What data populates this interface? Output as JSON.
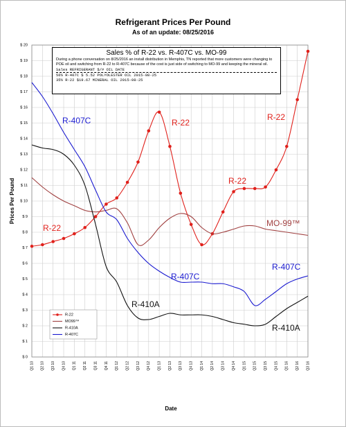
{
  "chart_data": {
    "type": "line",
    "title": "Refrigerant Prices Per Pound",
    "subtitle": "As of an update:  08/25/2016",
    "x_label": "Date",
    "y_label": "Prices Per Pound",
    "categories": [
      "Q1 10",
      "Q2 10",
      "Q3 10",
      "Q4 10",
      "Q1 11",
      "Q2 11",
      "Q3 11",
      "Q4 11",
      "Q1 12",
      "Q2 12",
      "Q3 12",
      "Q4 12",
      "Q1 13",
      "Q2 13",
      "Q3 13",
      "Q4 13",
      "Q1 14",
      "Q2 14",
      "Q3 14",
      "Q4 14",
      "Q1 15",
      "Q2 15",
      "Q3 15",
      "Q4 15",
      "Q1 16",
      "Q2 16",
      "Q3 16"
    ],
    "series": [
      {
        "name": "R-22",
        "color": "#e0201b",
        "markers": true,
        "values": [
          7.1,
          7.2,
          7.4,
          7.6,
          7.9,
          8.3,
          9.0,
          9.8,
          10.2,
          11.2,
          12.5,
          14.5,
          15.7,
          13.5,
          10.5,
          8.5,
          7.2,
          7.9,
          9.3,
          10.6,
          10.8,
          10.8,
          10.9,
          12.0,
          13.5,
          16.5,
          19.6
        ]
      },
      {
        "name": "MO99™",
        "color": "#a04040",
        "markers": false,
        "values": [
          11.5,
          10.9,
          10.4,
          10.0,
          9.7,
          9.4,
          9.3,
          9.4,
          9.5,
          8.6,
          7.2,
          7.5,
          8.3,
          8.9,
          9.2,
          9.0,
          8.3,
          7.9,
          8.0,
          8.2,
          8.4,
          8.4,
          8.2,
          8.1,
          8.0,
          7.9,
          7.8
        ]
      },
      {
        "name": "R-410A",
        "color": "#111111",
        "markers": false,
        "values": [
          13.6,
          13.4,
          13.3,
          13.0,
          12.3,
          11.0,
          8.5,
          5.8,
          4.8,
          3.3,
          2.5,
          2.4,
          2.6,
          2.8,
          2.7,
          2.7,
          2.7,
          2.6,
          2.4,
          2.2,
          2.1,
          2.0,
          2.1,
          2.6,
          3.1,
          3.5,
          3.9
        ]
      },
      {
        "name": "R-407C",
        "color": "#1a1ad0",
        "markers": false,
        "values": [
          17.6,
          16.7,
          15.6,
          14.4,
          13.3,
          12.2,
          10.7,
          9.3,
          8.8,
          7.6,
          6.7,
          6.0,
          5.5,
          5.1,
          4.8,
          4.8,
          4.8,
          4.7,
          4.7,
          4.5,
          4.2,
          3.3,
          3.7,
          4.2,
          4.7,
          5.0,
          5.2
        ]
      }
    ],
    "ylim": [
      0,
      20
    ],
    "yticks": [
      {
        "value": 0,
        "label": "$ 0"
      },
      {
        "value": 1,
        "label": "$ 1"
      },
      {
        "value": 2,
        "label": "$ 2"
      },
      {
        "value": 3,
        "label": "$ 3"
      },
      {
        "value": 4,
        "label": "$ 4"
      },
      {
        "value": 5,
        "label": "$ 5"
      },
      {
        "value": 6,
        "label": "$ 6"
      },
      {
        "value": 7,
        "label": "$ 7"
      },
      {
        "value": 8,
        "label": "$ 8"
      },
      {
        "value": 9,
        "label": "$ 9"
      },
      {
        "value": 10,
        "label": "$ 10"
      },
      {
        "value": 11,
        "label": "$ 11"
      },
      {
        "value": 12,
        "label": "$ 12"
      },
      {
        "value": 13,
        "label": "$ 13"
      },
      {
        "value": 14,
        "label": "$ 14"
      },
      {
        "value": 15,
        "label": "$ 15"
      },
      {
        "value": 16,
        "label": "$ 16"
      },
      {
        "value": 17,
        "label": "$ 17"
      },
      {
        "value": 18,
        "label": "$ 18"
      },
      {
        "value": 19,
        "label": "$ 19"
      },
      {
        "value": 20,
        "label": "$ 20"
      }
    ],
    "grid": true,
    "legend": "lower left",
    "annotations": [
      {
        "text": "R-407C",
        "color": "#1a1ad0"
      },
      {
        "text": "R-22",
        "color": "#e0201b"
      },
      {
        "text": "R-22",
        "color": "#e0201b"
      },
      {
        "text": "R-22",
        "color": "#e0201b"
      },
      {
        "text": "R-22",
        "color": "#e0201b"
      },
      {
        "text": "MO-99™",
        "color": "#a04040"
      },
      {
        "text": "R-407C",
        "color": "#1a1ad0"
      },
      {
        "text": "R-407C",
        "color": "#1a1ad0"
      },
      {
        "text": "R-410A",
        "color": "#111111"
      },
      {
        "text": "R-410A",
        "color": "#111111"
      }
    ],
    "note": {
      "title": "Sales % of R-22 vs. R-407C vs. MO-99",
      "body": "During a phone conversation on 8/25/2016 an install distribution in Memphis, TN reported that more customers were changing to POE oil and switching from R-22 to R-407C because of the cost is just side of switching to MO-99 and keeping the mineral oil.",
      "lines": [
        "Sales REFRIGERANT $/# OIL DATE",
        "56% R-407C $ 5.52 POLYOLESTER OIL 2015-08-25",
        "35% R-22 $19.67 MINERAL OIL 2015-08-25"
      ]
    }
  }
}
